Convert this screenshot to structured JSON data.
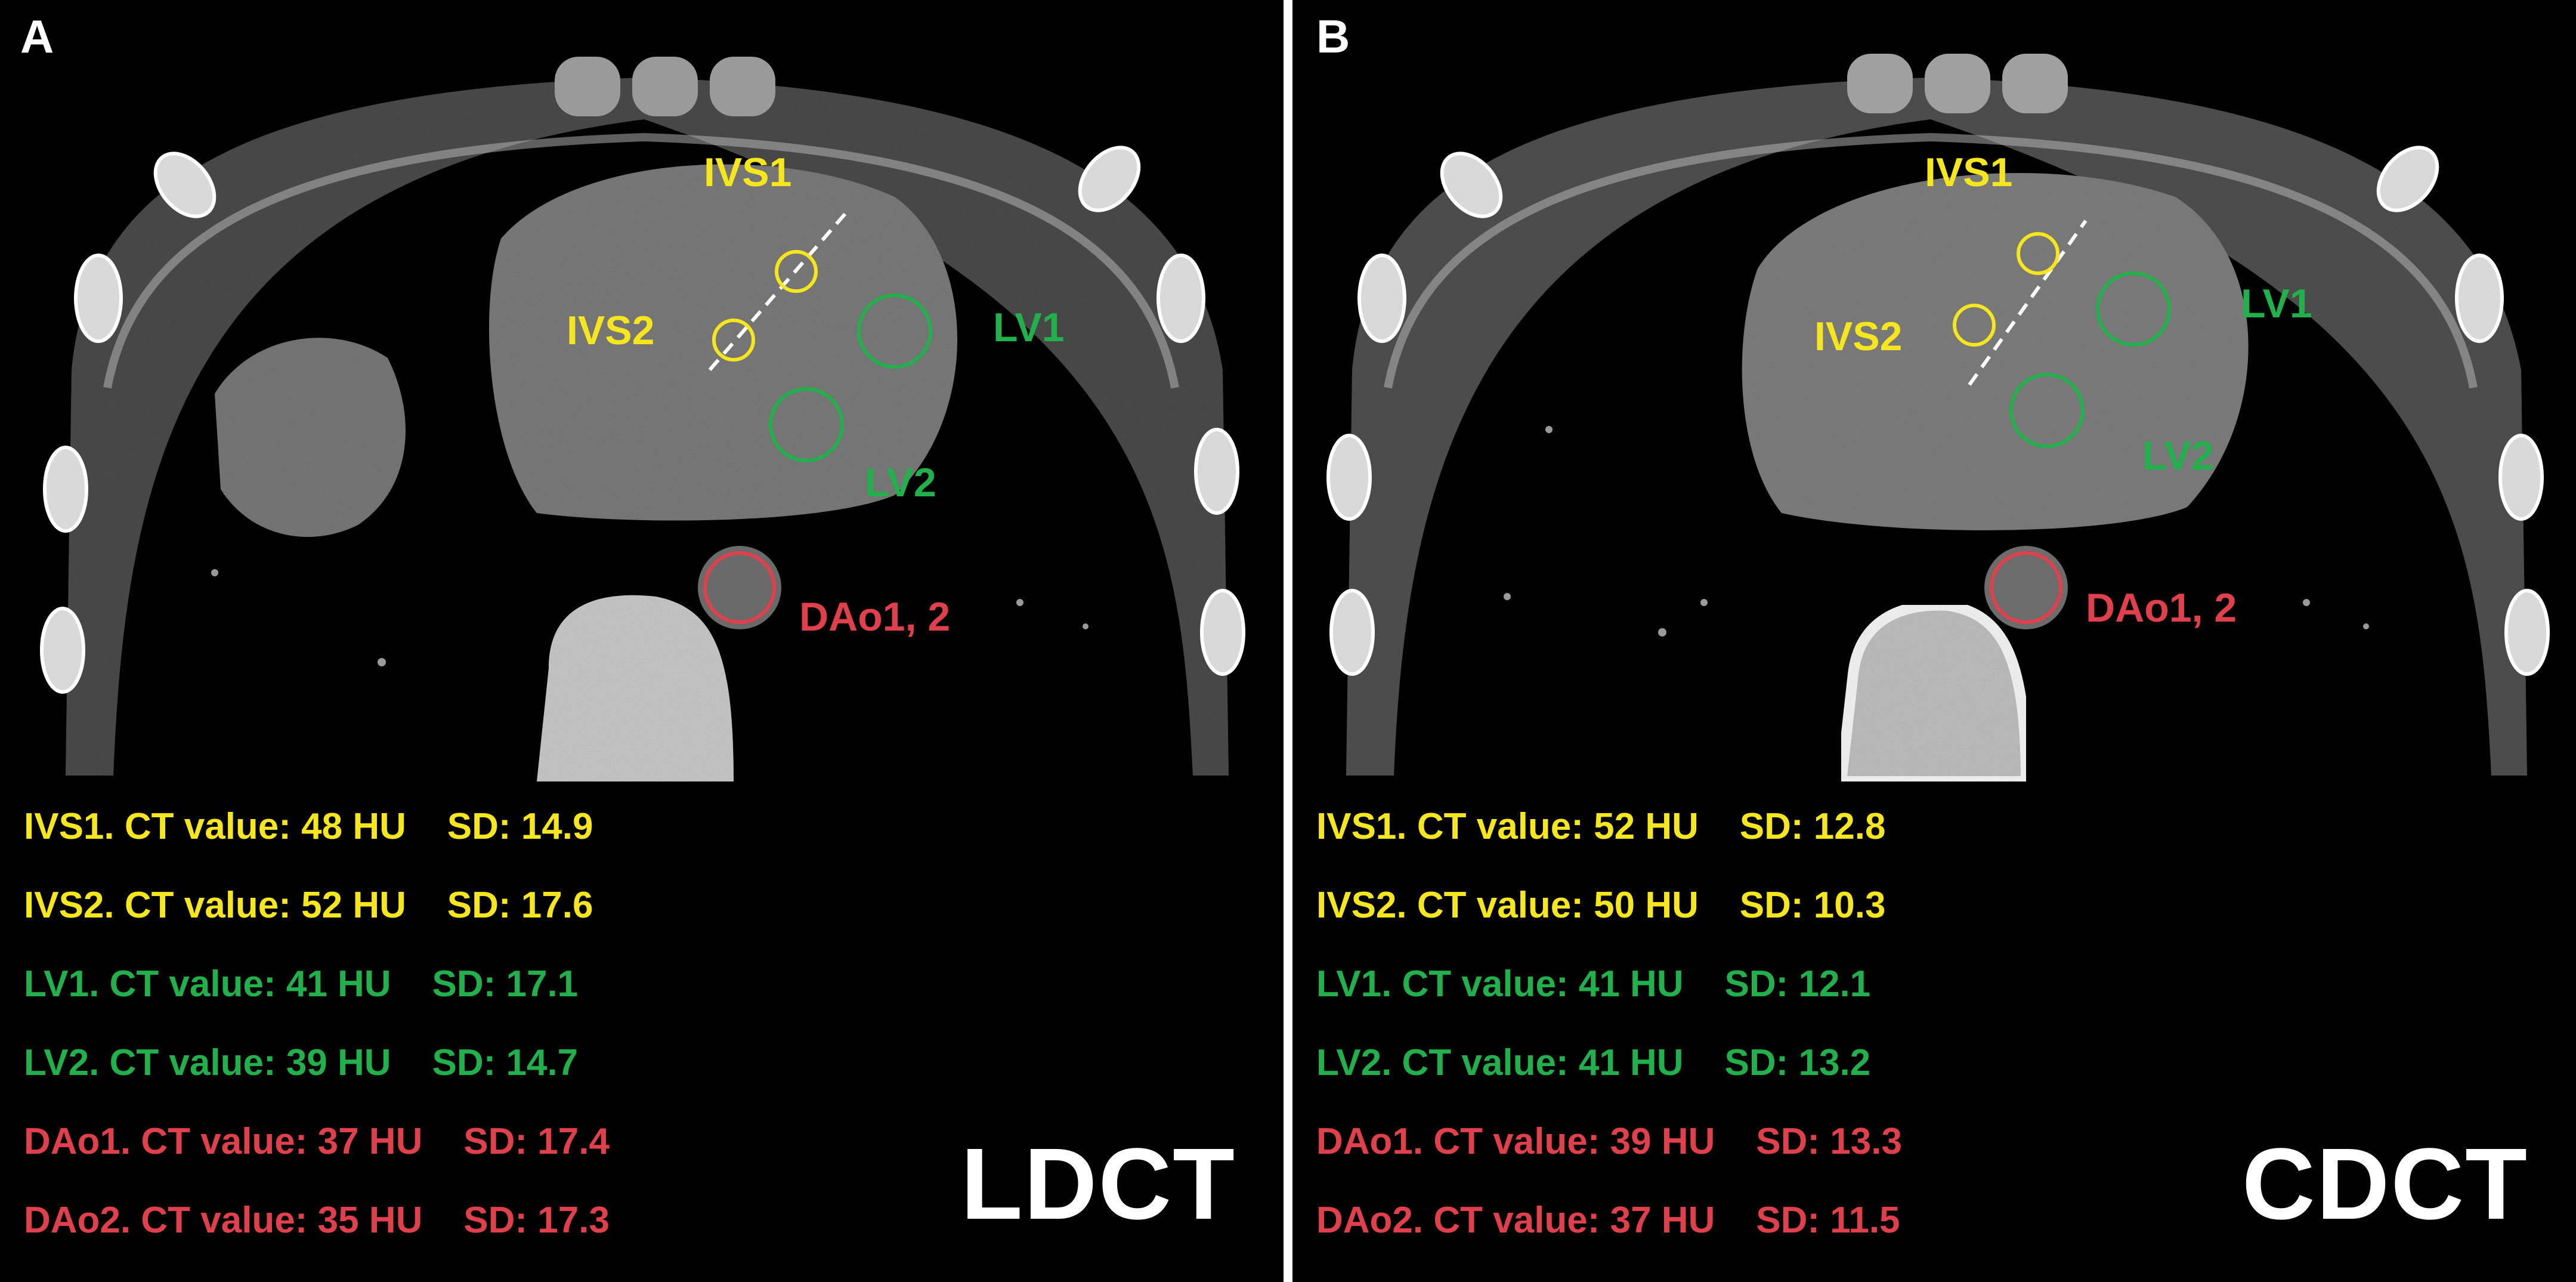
{
  "colors": {
    "ivs": "#f5e61e",
    "lv": "#22b04c",
    "dao": "#e0404c",
    "background": "#000000",
    "divider": "#ffffff"
  },
  "panels": [
    {
      "letter": "A",
      "modality": "LDCT",
      "roi_labels": {
        "ivs1": "IVS1",
        "ivs2": "IVS2",
        "lv1": "LV1",
        "lv2": "LV2",
        "dao": "DAo1, 2"
      },
      "stats": [
        {
          "text": "IVS1. CT value: 48 HU    SD: 14.9",
          "color_key": "ivs"
        },
        {
          "text": "IVS2. CT value: 52 HU    SD: 17.6",
          "color_key": "ivs"
        },
        {
          "text": "LV1. CT value: 41 HU    SD: 17.1",
          "color_key": "lv"
        },
        {
          "text": "LV2. CT value: 39 HU    SD: 14.7",
          "color_key": "lv"
        },
        {
          "text": "DAo1. CT value: 37 HU    SD: 17.4",
          "color_key": "dao"
        },
        {
          "text": "DAo2. CT value: 35 HU    SD: 17.3",
          "color_key": "dao"
        }
      ]
    },
    {
      "letter": "B",
      "modality": "CDCT",
      "roi_labels": {
        "ivs1": "IVS1",
        "ivs2": "IVS2",
        "lv1": "LV1",
        "lv2": "LV2",
        "dao": "DAo1, 2"
      },
      "stats": [
        {
          "text": "IVS1. CT value: 52 HU    SD: 12.8",
          "color_key": "ivs"
        },
        {
          "text": "IVS2. CT value: 50 HU    SD: 10.3",
          "color_key": "ivs"
        },
        {
          "text": "LV1. CT value: 41 HU    SD: 12.1",
          "color_key": "lv"
        },
        {
          "text": "LV2. CT value: 41 HU    SD: 13.2",
          "color_key": "lv"
        },
        {
          "text": "DAo1. CT value: 39 HU    SD: 13.3",
          "color_key": "dao"
        },
        {
          "text": "DAo2. CT value: 37 HU    SD: 11.5",
          "color_key": "dao"
        }
      ]
    }
  ]
}
